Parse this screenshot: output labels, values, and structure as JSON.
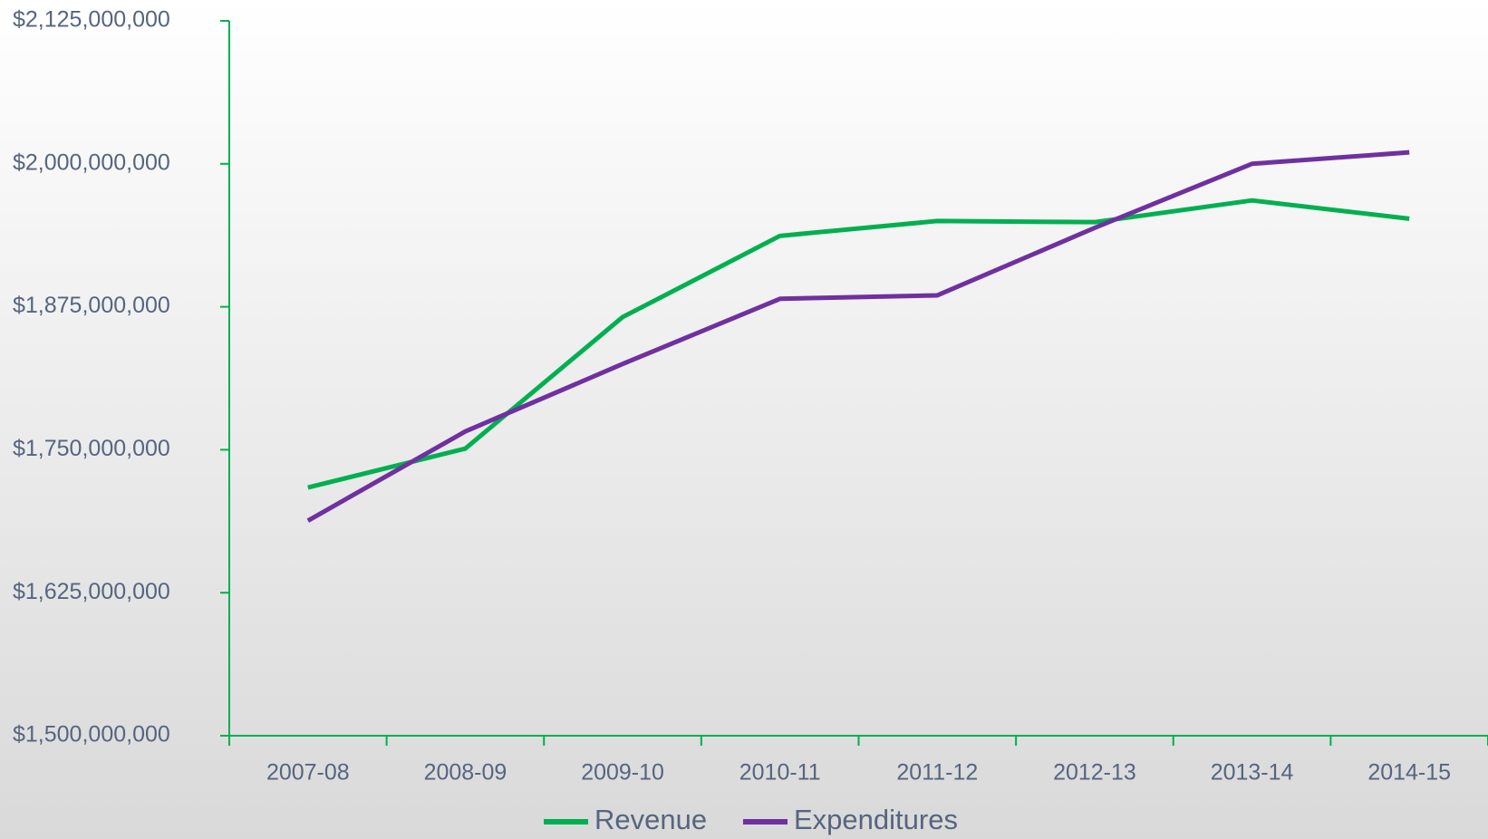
{
  "chart_data": {
    "type": "line",
    "categories": [
      "2007-08",
      "2008-09",
      "2009-10",
      "2010-11",
      "2011-12",
      "2012-13",
      "2013-14",
      "2014-15"
    ],
    "series": [
      {
        "name": "Revenue",
        "color": "#00b050",
        "values": [
          1717000000,
          1751000000,
          1866000000,
          1937000000,
          1950000000,
          1949000000,
          1968000000,
          1952000000
        ]
      },
      {
        "name": "Expenditures",
        "color": "#7030a0",
        "values": [
          1688000000,
          1766000000,
          1825000000,
          1882000000,
          1885000000,
          1944000000,
          2000000000,
          2010000000
        ]
      }
    ],
    "ylim": [
      1500000000,
      2125000000
    ],
    "yticks": [
      {
        "value": 1500000000,
        "label": "$1,500,000,000"
      },
      {
        "value": 1625000000,
        "label": "$1,625,000,000"
      },
      {
        "value": 1750000000,
        "label": "$1,750,000,000"
      },
      {
        "value": 1875000000,
        "label": "$1,875,000,000"
      },
      {
        "value": 2000000000,
        "label": "$2,000,000,000"
      },
      {
        "value": 2125000000,
        "label": "$2,125,000,000"
      }
    ],
    "grid": false,
    "legend": "bottom"
  }
}
